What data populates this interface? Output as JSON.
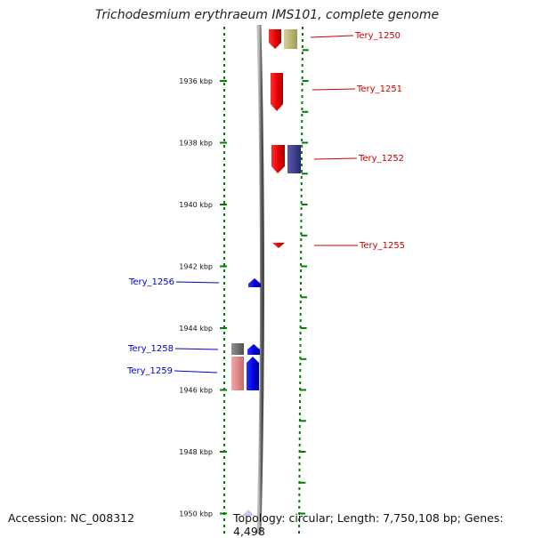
{
  "title": "Trichodesmium erythraeum IMS101, complete genome",
  "footer": {
    "accession": "Accession: NC_008312",
    "summary": "Topology: circular; Length: 7,750,108 bp; Genes: 4,498"
  },
  "axis": {
    "ticks": [
      {
        "label": "1936 kbp",
        "kbp": 1936
      },
      {
        "label": "1938 kbp",
        "kbp": 1938
      },
      {
        "label": "1940 kbp",
        "kbp": 1940
      },
      {
        "label": "1942 kbp",
        "kbp": 1942
      },
      {
        "label": "1944 kbp",
        "kbp": 1944
      },
      {
        "label": "1946 kbp",
        "kbp": 1946
      },
      {
        "label": "1948 kbp",
        "kbp": 1948
      },
      {
        "label": "1950 kbp",
        "kbp": 1950
      }
    ]
  },
  "genes": [
    {
      "name": "Tery_1250",
      "strand": "forward",
      "color": "#cc0000"
    },
    {
      "name": "Tery_1251",
      "strand": "forward",
      "color": "#cc0000"
    },
    {
      "name": "Tery_1252",
      "strand": "forward",
      "color": "#cc0000"
    },
    {
      "name": "Tery_1255",
      "strand": "forward",
      "color": "#cc0000"
    },
    {
      "name": "Tery_1256",
      "strand": "reverse",
      "color": "#0000cc"
    },
    {
      "name": "Tery_1258",
      "strand": "reverse",
      "color": "#0000cc"
    },
    {
      "name": "Tery_1259",
      "strand": "reverse",
      "color": "#0000cc"
    }
  ],
  "colors": {
    "forward_gene": "#ff0000",
    "reverse_gene": "#0000ff",
    "forward_label": "#cc0000",
    "reverse_label": "#0000cc",
    "tick": "#008000",
    "backbone": "#808080",
    "khaki_feature": "#c8c078",
    "navy_feature": "#3a3a8a",
    "gray_feature": "#707070",
    "pink_feature": "#e88a8a"
  }
}
